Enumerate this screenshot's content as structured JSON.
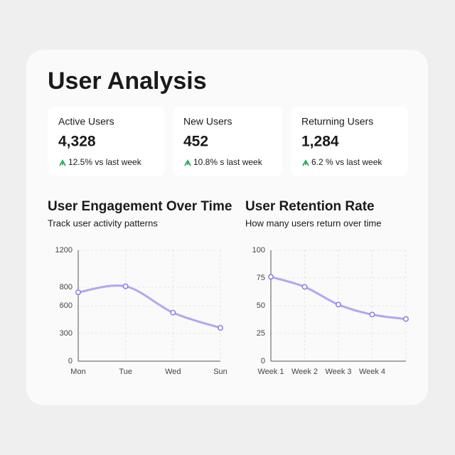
{
  "header": {
    "title": "User Analysis"
  },
  "stats": [
    {
      "label": "Active Users",
      "value": "4,328",
      "change": "12.5% vs last week"
    },
    {
      "label": "New Users",
      "value": "452",
      "change": "10.8% s last week"
    },
    {
      "label": "Returning Users",
      "value": "1,284",
      "change": "6.2 % vs last week"
    }
  ],
  "chart_data": [
    {
      "type": "line",
      "title": "User Engagement Over Time",
      "subtitle": "Track user activity patterns",
      "categories": [
        "Mon",
        "Tue",
        "Wed",
        "Sun"
      ],
      "values": [
        745,
        810,
        525,
        360
      ],
      "color": "#b3a6f2",
      "ylim": [
        0,
        1200
      ],
      "yticks": [
        0,
        300,
        600,
        800,
        1200
      ],
      "grid": true
    },
    {
      "type": "line",
      "title": "User Retention Rate",
      "subtitle": "How many users return over time",
      "categories": [
        "Week 1",
        "Week 2",
        "Week 3",
        "Week 4",
        null
      ],
      "values": [
        76,
        67,
        51,
        42,
        38
      ],
      "color": "#b3a6f2",
      "ylim": [
        0,
        100
      ],
      "yticks": [
        0,
        25,
        50,
        75,
        100
      ],
      "grid": true
    }
  ]
}
